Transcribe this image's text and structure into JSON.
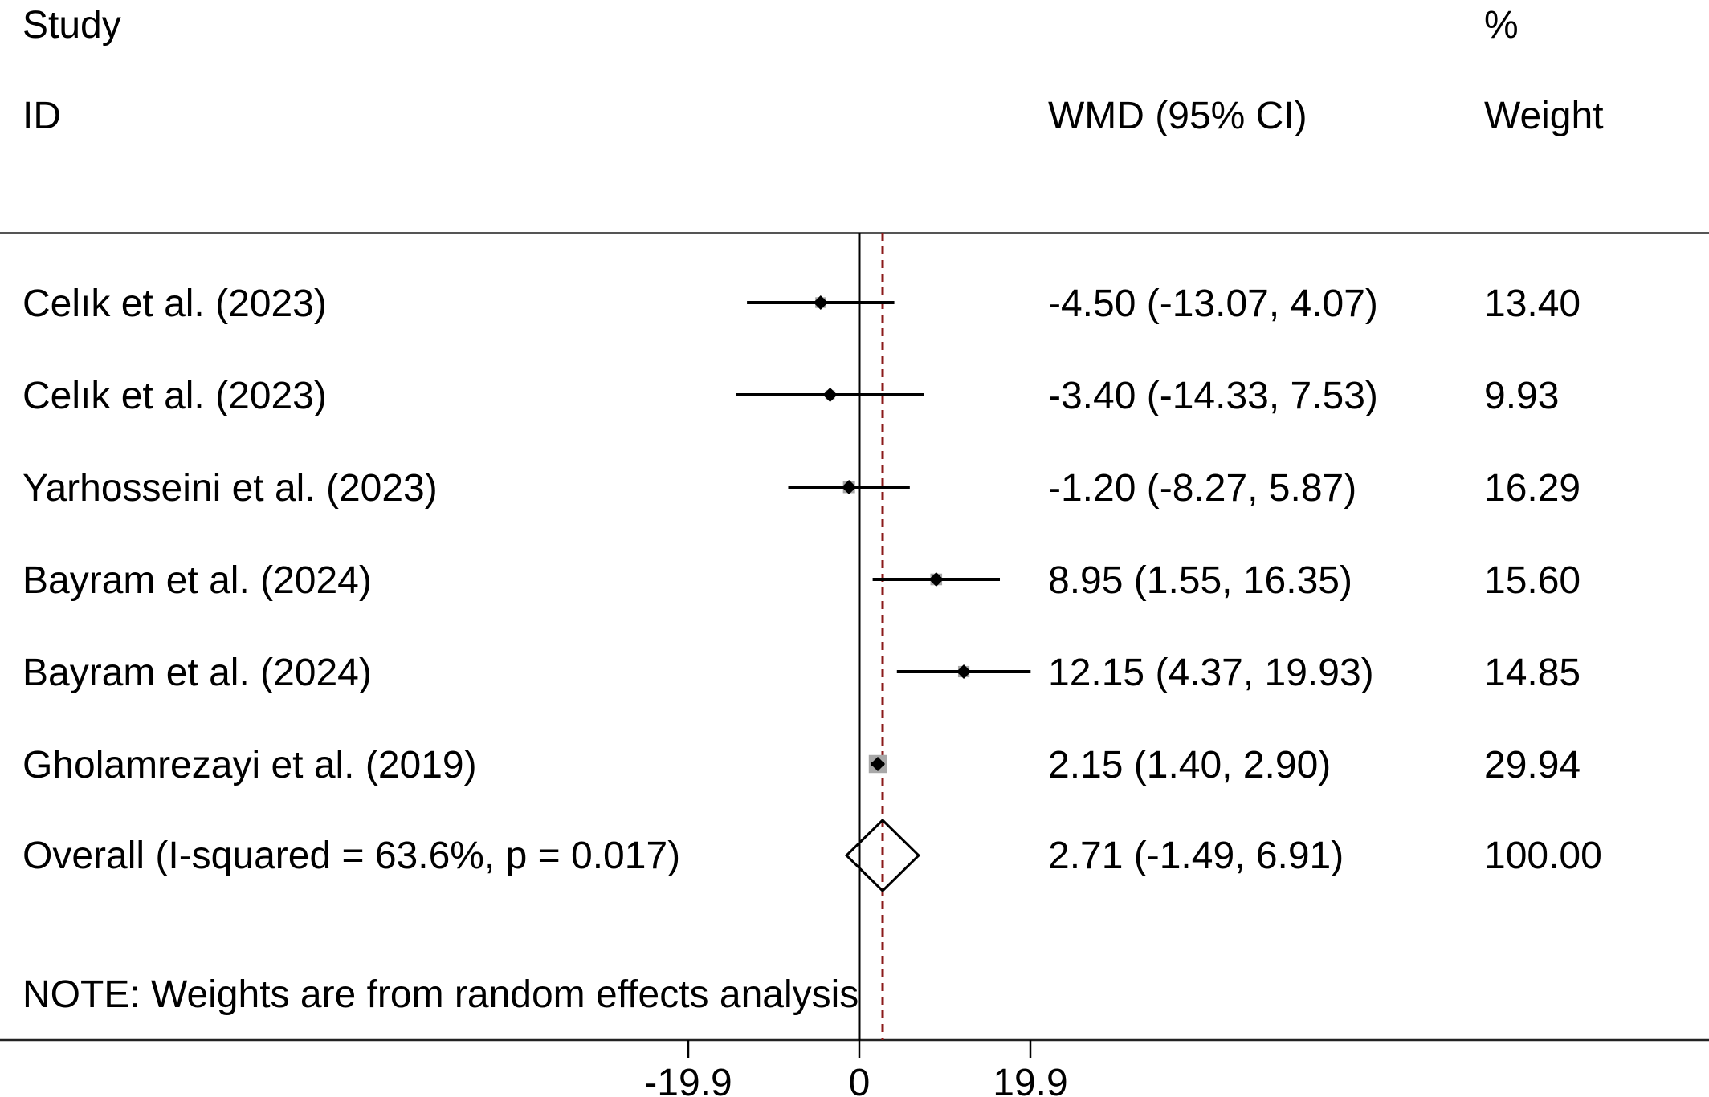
{
  "header": {
    "study_label": "Study",
    "id_label": "ID",
    "effect_label": "WMD (95% CI)",
    "percent_label": "%",
    "weight_label": "Weight"
  },
  "note": "NOTE: Weights are from random effects analysis",
  "chart_data": {
    "type": "forest",
    "effect_measure": "WMD",
    "null_value": 0,
    "pooled_line_value": 2.71,
    "xticks": [
      -19.9,
      0,
      19.9
    ],
    "xtick_labels": [
      "-19.9",
      "0",
      "19.9"
    ],
    "xlim": [
      -19.9,
      19.9
    ],
    "colors": {
      "marker": "#000000",
      "weight_box": "#a8a8a8",
      "pooled_line": "#8b1a1a"
    },
    "studies": [
      {
        "label": "Celık et al. (2023)",
        "wmd": -4.5,
        "ci_low": -13.07,
        "ci_high": 4.07,
        "ci_text": "-4.50 (-13.07, 4.07)",
        "weight": 13.4,
        "weight_text": "13.40"
      },
      {
        "label": "Celık et al. (2023)",
        "wmd": -3.4,
        "ci_low": -14.33,
        "ci_high": 7.53,
        "ci_text": "-3.40 (-14.33, 7.53)",
        "weight": 9.93,
        "weight_text": "9.93"
      },
      {
        "label": "Yarhosseini et al. (2023)",
        "wmd": -1.2,
        "ci_low": -8.27,
        "ci_high": 5.87,
        "ci_text": "-1.20 (-8.27, 5.87)",
        "weight": 16.29,
        "weight_text": "16.29"
      },
      {
        "label": "Bayram et al. (2024)",
        "wmd": 8.95,
        "ci_low": 1.55,
        "ci_high": 16.35,
        "ci_text": "8.95 (1.55, 16.35)",
        "weight": 15.6,
        "weight_text": "15.60"
      },
      {
        "label": "Bayram et al. (2024)",
        "wmd": 12.15,
        "ci_low": 4.37,
        "ci_high": 19.93,
        "ci_text": "12.15 (4.37, 19.93)",
        "weight": 14.85,
        "weight_text": "14.85"
      },
      {
        "label": "Gholamrezayi et al. (2019)",
        "wmd": 2.15,
        "ci_low": 1.4,
        "ci_high": 2.9,
        "ci_text": "2.15 (1.40, 2.90)",
        "weight": 29.94,
        "weight_text": "29.94"
      }
    ],
    "overall": {
      "label": "Overall  (I-squared = 63.6%, p = 0.017)",
      "wmd": 2.71,
      "ci_low": -1.49,
      "ci_high": 6.91,
      "ci_text": "2.71 (-1.49, 6.91)",
      "weight_text": "100.00"
    }
  }
}
